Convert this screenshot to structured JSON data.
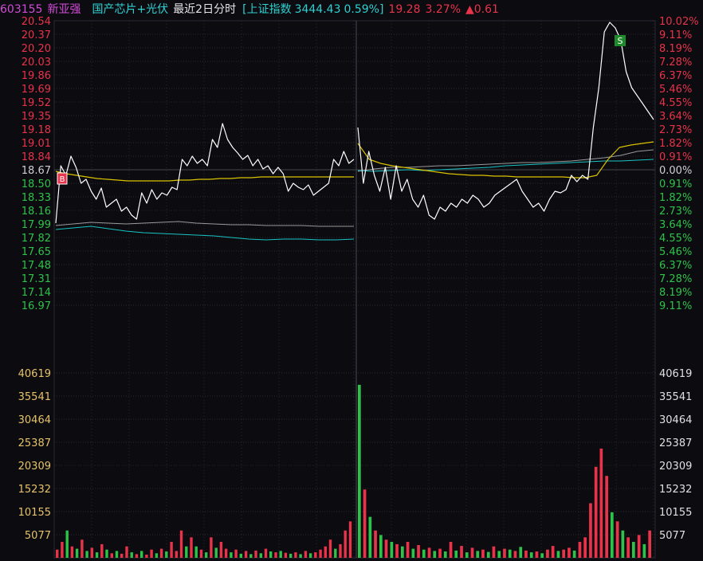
{
  "header": {
    "code": "603155",
    "name": "新亚强",
    "sector": "国产芯片+光伏",
    "period": "最近2日分时",
    "index_name": "[上证指数",
    "index_value": "3444.43",
    "index_change": "0.59%]",
    "price": "19.28",
    "change_pct": "3.27%",
    "change_abs": "▲0.61"
  },
  "colors": {
    "bg": "#0b0b10",
    "grid": "#2a2a33",
    "up": "#e8334a",
    "down": "#2ec24a",
    "neutral": "#d0d0d0",
    "price_line": "#ffffff",
    "avg_line": "#d9c200",
    "gray_line": "#9a9a9a",
    "cyan_line": "#19c4c4",
    "header_code": "#d24bd8",
    "header_cyan": "#2fd0d0",
    "volume_axis": "#e6c36a"
  },
  "chart_data": {
    "type": "line",
    "title": "603155 新亚强 最近2日分时",
    "price_axis_left": [
      "20.54",
      "20.37",
      "20.20",
      "20.03",
      "19.86",
      "19.69",
      "19.52",
      "19.35",
      "19.18",
      "19.01",
      "18.84",
      "18.67",
      "18.50",
      "18.33",
      "18.16",
      "17.99",
      "17.82",
      "17.65",
      "17.48",
      "17.31",
      "17.14",
      "16.97"
    ],
    "pct_axis_right": [
      "10.02%",
      "9.11%",
      "8.19%",
      "7.28%",
      "6.37%",
      "5.46%",
      "4.55%",
      "3.64%",
      "2.73%",
      "1.82%",
      "0.91%",
      "0.00%",
      "0.91%",
      "1.82%",
      "2.73%",
      "3.64%",
      "4.55%",
      "5.46%",
      "6.37%",
      "7.28%",
      "8.19%",
      "9.11%"
    ],
    "price_ylim": [
      16.97,
      20.54
    ],
    "reference_price": 18.67,
    "volume_axis": [
      "40619",
      "35541",
      "30464",
      "25387",
      "20309",
      "15232",
      "10155",
      "5077"
    ],
    "volume_ylim": [
      0,
      40619
    ],
    "sell_marker": "S",
    "buy_marker": "B",
    "series": [
      {
        "role": "price",
        "day1": [
          18.0,
          18.72,
          18.6,
          18.84,
          18.7,
          18.5,
          18.55,
          18.4,
          18.3,
          18.44,
          18.2,
          18.25,
          18.3,
          18.15,
          18.2,
          18.1,
          18.05,
          18.38,
          18.25,
          18.42,
          18.3,
          18.38,
          18.35,
          18.45,
          18.42,
          18.8,
          18.72,
          18.84,
          18.75,
          18.8,
          18.72,
          19.05,
          18.95,
          19.25,
          19.05,
          18.95,
          18.88,
          18.8,
          18.85,
          18.72,
          18.8,
          18.68,
          18.72,
          18.62,
          18.7,
          18.62,
          18.4,
          18.5,
          18.45,
          18.42,
          18.48,
          18.35,
          18.4,
          18.45,
          18.5,
          18.8,
          18.72,
          18.9,
          18.75,
          18.8
        ],
        "day2": [
          19.2,
          18.5,
          18.9,
          18.6,
          18.4,
          18.7,
          18.3,
          18.72,
          18.4,
          18.55,
          18.3,
          18.2,
          18.35,
          18.1,
          18.05,
          18.2,
          18.15,
          18.25,
          18.2,
          18.3,
          18.25,
          18.35,
          18.3,
          18.2,
          18.25,
          18.35,
          18.4,
          18.45,
          18.5,
          18.55,
          18.4,
          18.3,
          18.2,
          18.25,
          18.15,
          18.3,
          18.4,
          18.38,
          18.42,
          18.6,
          18.52,
          18.6,
          18.55,
          19.2,
          19.7,
          20.4,
          20.52,
          20.45,
          20.3,
          19.9,
          19.7,
          19.6,
          19.5,
          19.4,
          19.3
        ]
      },
      {
        "role": "average",
        "day1": [
          18.65,
          18.62,
          18.6,
          18.58,
          18.56,
          18.55,
          18.54,
          18.53,
          18.53,
          18.53,
          18.53,
          18.53,
          18.54,
          18.54,
          18.55,
          18.55,
          18.56,
          18.56,
          18.57,
          18.57,
          18.58,
          18.58,
          18.58,
          18.58,
          18.58,
          18.58,
          18.58,
          18.58,
          18.58,
          18.58
        ],
        "day2": [
          19.0,
          18.8,
          18.75,
          18.72,
          18.7,
          18.68,
          18.66,
          18.64,
          18.62,
          18.61,
          18.6,
          18.6,
          18.59,
          18.59,
          18.58,
          18.58,
          18.58,
          18.58,
          18.58,
          18.57,
          18.57,
          18.6,
          18.8,
          18.95,
          18.98,
          19.0,
          19.02
        ]
      },
      {
        "role": "index_gray",
        "day1": [
          17.97,
          17.99,
          18.01,
          18.0,
          17.99,
          18.0,
          18.01,
          18.02,
          18.0,
          17.99,
          17.98,
          17.98,
          17.97,
          17.97,
          17.97,
          17.96,
          17.96,
          17.96
        ],
        "day2": [
          18.65,
          18.68,
          18.7,
          18.7,
          18.71,
          18.72,
          18.72,
          18.73,
          18.74,
          18.75,
          18.76,
          18.76,
          18.77,
          18.78,
          18.8,
          18.82,
          18.85,
          18.9,
          18.92
        ]
      },
      {
        "role": "index_cyan",
        "day1": [
          17.92,
          17.94,
          17.96,
          17.93,
          17.9,
          17.88,
          17.87,
          17.86,
          17.85,
          17.84,
          17.82,
          17.8,
          17.79,
          17.8,
          17.8,
          17.79,
          17.79,
          17.8
        ],
        "day2": [
          18.66,
          18.65,
          18.66,
          18.67,
          18.66,
          18.67,
          18.68,
          18.69,
          18.7,
          18.72,
          18.73,
          18.74,
          18.75,
          18.76,
          18.77,
          18.78,
          18.78,
          18.79,
          18.8
        ]
      }
    ],
    "volume": {
      "day1": [
        [
          1800,
          "u"
        ],
        [
          3500,
          "u"
        ],
        [
          6000,
          "d"
        ],
        [
          2500,
          "u"
        ],
        [
          2000,
          "d"
        ],
        [
          4000,
          "u"
        ],
        [
          1500,
          "d"
        ],
        [
          2200,
          "u"
        ],
        [
          1200,
          "d"
        ],
        [
          3000,
          "u"
        ],
        [
          1800,
          "d"
        ],
        [
          1000,
          "u"
        ],
        [
          1500,
          "d"
        ],
        [
          900,
          "u"
        ],
        [
          2500,
          "u"
        ],
        [
          1200,
          "d"
        ],
        [
          800,
          "u"
        ],
        [
          1500,
          "d"
        ],
        [
          700,
          "u"
        ],
        [
          1800,
          "u"
        ],
        [
          1000,
          "d"
        ],
        [
          2000,
          "u"
        ],
        [
          1400,
          "d"
        ],
        [
          3500,
          "u"
        ],
        [
          1500,
          "u"
        ],
        [
          6000,
          "u"
        ],
        [
          2500,
          "d"
        ],
        [
          4500,
          "u"
        ],
        [
          2500,
          "d"
        ],
        [
          1800,
          "u"
        ],
        [
          1200,
          "d"
        ],
        [
          4500,
          "u"
        ],
        [
          2200,
          "d"
        ],
        [
          3500,
          "u"
        ],
        [
          2000,
          "u"
        ],
        [
          1200,
          "d"
        ],
        [
          1800,
          "u"
        ],
        [
          900,
          "d"
        ],
        [
          1500,
          "u"
        ],
        [
          800,
          "d"
        ],
        [
          1600,
          "u"
        ],
        [
          1000,
          "d"
        ],
        [
          2000,
          "u"
        ],
        [
          1400,
          "d"
        ],
        [
          1200,
          "u"
        ],
        [
          1500,
          "d"
        ],
        [
          1100,
          "u"
        ],
        [
          900,
          "d"
        ],
        [
          1200,
          "u"
        ],
        [
          800,
          "d"
        ],
        [
          1500,
          "u"
        ],
        [
          1000,
          "d"
        ],
        [
          1200,
          "u"
        ],
        [
          1800,
          "u"
        ],
        [
          2500,
          "u"
        ],
        [
          4000,
          "u"
        ],
        [
          2000,
          "d"
        ],
        [
          3000,
          "u"
        ],
        [
          6000,
          "u"
        ],
        [
          8000,
          "u"
        ]
      ],
      "day2": [
        [
          38000,
          "d"
        ],
        [
          15000,
          "u"
        ],
        [
          9000,
          "d"
        ],
        [
          6000,
          "u"
        ],
        [
          5000,
          "d"
        ],
        [
          4000,
          "u"
        ],
        [
          3500,
          "d"
        ],
        [
          3000,
          "u"
        ],
        [
          2500,
          "d"
        ],
        [
          3500,
          "u"
        ],
        [
          2000,
          "d"
        ],
        [
          2800,
          "u"
        ],
        [
          1800,
          "d"
        ],
        [
          2200,
          "u"
        ],
        [
          1500,
          "d"
        ],
        [
          2000,
          "u"
        ],
        [
          1400,
          "d"
        ],
        [
          3500,
          "u"
        ],
        [
          1600,
          "d"
        ],
        [
          2600,
          "u"
        ],
        [
          1200,
          "d"
        ],
        [
          2200,
          "u"
        ],
        [
          1500,
          "d"
        ],
        [
          1800,
          "u"
        ],
        [
          1300,
          "d"
        ],
        [
          2500,
          "u"
        ],
        [
          1500,
          "d"
        ],
        [
          2000,
          "u"
        ],
        [
          1800,
          "d"
        ],
        [
          1500,
          "u"
        ],
        [
          2400,
          "d"
        ],
        [
          1600,
          "u"
        ],
        [
          1200,
          "d"
        ],
        [
          1400,
          "u"
        ],
        [
          1000,
          "d"
        ],
        [
          1800,
          "u"
        ],
        [
          2600,
          "u"
        ],
        [
          1500,
          "d"
        ],
        [
          1800,
          "u"
        ],
        [
          2200,
          "u"
        ],
        [
          1600,
          "d"
        ],
        [
          3500,
          "u"
        ],
        [
          4500,
          "u"
        ],
        [
          12000,
          "u"
        ],
        [
          20000,
          "u"
        ],
        [
          24000,
          "u"
        ],
        [
          18000,
          "u"
        ],
        [
          10000,
          "d"
        ],
        [
          8000,
          "u"
        ],
        [
          6000,
          "d"
        ],
        [
          4500,
          "u"
        ],
        [
          3500,
          "d"
        ],
        [
          5000,
          "u"
        ],
        [
          3000,
          "d"
        ],
        [
          6000,
          "u"
        ]
      ]
    }
  }
}
